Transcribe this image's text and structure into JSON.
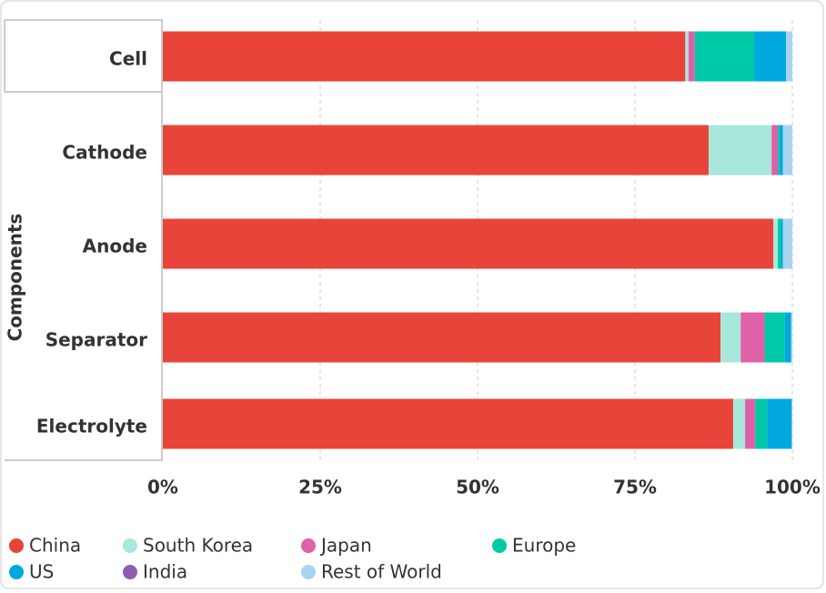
{
  "chart_data": {
    "type": "bar",
    "orientation": "horizontal",
    "stacked": true,
    "y_label": "Components",
    "categories": [
      "Cell",
      "Cathode",
      "Anode",
      "Separator",
      "Electrolyte"
    ],
    "series": [
      {
        "name": "China",
        "color": "#e8443a",
        "values": [
          83,
          86.7,
          97,
          88.6,
          90.6
        ]
      },
      {
        "name": "South Korea",
        "color": "#a8e8dc",
        "values": [
          0.5,
          10,
          0.7,
          3.2,
          1.9
        ]
      },
      {
        "name": "Japan",
        "color": "#e060a8",
        "values": [
          1,
          1,
          0,
          3.8,
          1.6
        ]
      },
      {
        "name": "Europe",
        "color": "#00c9a7",
        "values": [
          9.5,
          0.3,
          0.5,
          3.2,
          1.9
        ]
      },
      {
        "name": "US",
        "color": "#00a8e0",
        "values": [
          5,
          0.5,
          0.3,
          1,
          3.9
        ]
      },
      {
        "name": "India",
        "color": "#8e5bb5",
        "values": [
          0,
          0,
          0,
          0,
          0
        ]
      },
      {
        "name": "Rest of World",
        "color": "#a8d4f0",
        "values": [
          1,
          1.5,
          1.5,
          0.2,
          0.1
        ]
      }
    ],
    "xlim": [
      0,
      100
    ],
    "xticks": [
      {
        "value": 0,
        "label": "0%"
      },
      {
        "value": 25,
        "label": "25%"
      },
      {
        "value": 50,
        "label": "50%"
      },
      {
        "value": 75,
        "label": "75%"
      },
      {
        "value": 100,
        "label": "100%"
      }
    ],
    "grid": true
  }
}
